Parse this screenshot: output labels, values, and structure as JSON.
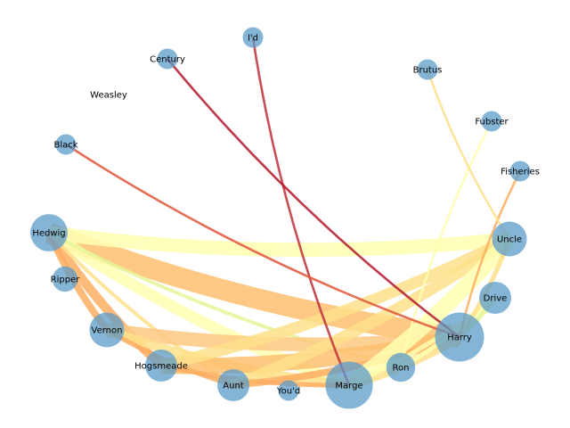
{
  "graph": {
    "nodes": [
      {
        "id": "id",
        "label": "I'd",
        "weight": 1
      },
      {
        "id": "century",
        "label": "Century",
        "weight": 1
      },
      {
        "id": "brutus",
        "label": "Brutus",
        "weight": 1
      },
      {
        "id": "weasley",
        "label": "Weasley",
        "weight": 0
      },
      {
        "id": "fubster",
        "label": "Fubster",
        "weight": 1
      },
      {
        "id": "black",
        "label": "Black",
        "weight": 1
      },
      {
        "id": "fisheries",
        "label": "Fisheries",
        "weight": 1
      },
      {
        "id": "hedwig",
        "label": "Hedwig",
        "weight": 6
      },
      {
        "id": "uncle",
        "label": "Uncle",
        "weight": 5
      },
      {
        "id": "ripper",
        "label": "Ripper",
        "weight": 2
      },
      {
        "id": "drive",
        "label": "Drive",
        "weight": 4
      },
      {
        "id": "vernon",
        "label": "Vernon",
        "weight": 5
      },
      {
        "id": "harry",
        "label": "Harry",
        "weight": 12
      },
      {
        "id": "hogsmeade",
        "label": "Hogsmeade",
        "weight": 4
      },
      {
        "id": "ron",
        "label": "Ron",
        "weight": 3
      },
      {
        "id": "aunt",
        "label": "Aunt",
        "weight": 4
      },
      {
        "id": "youd",
        "label": "You'd",
        "weight": 1
      },
      {
        "id": "marge",
        "label": "Marge",
        "weight": 11
      }
    ],
    "edges": [
      {
        "source": "hedwig",
        "target": "harry",
        "weight": 9,
        "color": "#fdbf6f"
      },
      {
        "source": "hedwig",
        "target": "uncle",
        "weight": 6,
        "color": "#ffffb2"
      },
      {
        "source": "hedwig",
        "target": "marge",
        "weight": 5,
        "color": "#ffffb2"
      },
      {
        "source": "hedwig",
        "target": "hogsmeade",
        "weight": 4,
        "color": "#fdae61"
      },
      {
        "source": "hedwig",
        "target": "vernon",
        "weight": 3,
        "color": "#fdae61"
      },
      {
        "source": "hedwig",
        "target": "ron",
        "weight": 1.5,
        "color": "#e6f598"
      },
      {
        "source": "hedwig",
        "target": "aunt",
        "weight": 1.5,
        "color": "#fee08b"
      },
      {
        "source": "vernon",
        "target": "harry",
        "weight": 6,
        "color": "#fdc981"
      },
      {
        "source": "vernon",
        "target": "marge",
        "weight": 4,
        "color": "#fee08b"
      },
      {
        "source": "vernon",
        "target": "aunt",
        "weight": 2,
        "color": "#fdae61"
      },
      {
        "source": "hogsmeade",
        "target": "harry",
        "weight": 7,
        "color": "#fdbf6f"
      },
      {
        "source": "hogsmeade",
        "target": "uncle",
        "weight": 5,
        "color": "#fee08b"
      },
      {
        "source": "hogsmeade",
        "target": "marge",
        "weight": 2,
        "color": "#fdae61"
      },
      {
        "source": "aunt",
        "target": "uncle",
        "weight": 5,
        "color": "#fee08b"
      },
      {
        "source": "aunt",
        "target": "harry",
        "weight": 3,
        "color": "#fdae61"
      },
      {
        "source": "marge",
        "target": "uncle",
        "weight": 7,
        "color": "#ffffb2"
      },
      {
        "source": "marge",
        "target": "harry",
        "weight": 4,
        "color": "#fee08b"
      },
      {
        "source": "marge",
        "target": "drive",
        "weight": 2,
        "color": "#ffffb2"
      },
      {
        "source": "ron",
        "target": "drive",
        "weight": 2,
        "color": "#ffffb2"
      },
      {
        "source": "harry",
        "target": "drive",
        "weight": 2,
        "color": "#e6f598"
      },
      {
        "source": "harry",
        "target": "uncle",
        "weight": 2,
        "color": "#fee08b"
      },
      {
        "source": "fisheries",
        "target": "harry",
        "weight": 1,
        "color": "#fdae61"
      },
      {
        "source": "fubster",
        "target": "ron",
        "weight": 1,
        "color": "#ffffb2"
      },
      {
        "source": "brutus",
        "target": "uncle",
        "weight": 1,
        "color": "#fee08b"
      },
      {
        "source": "id",
        "target": "marge",
        "weight": 1,
        "color": "#c0303a"
      },
      {
        "source": "century",
        "target": "harry",
        "weight": 1,
        "color": "#b2182b"
      },
      {
        "source": "black",
        "target": "harry",
        "weight": 1,
        "color": "#e0553a"
      }
    ]
  }
}
